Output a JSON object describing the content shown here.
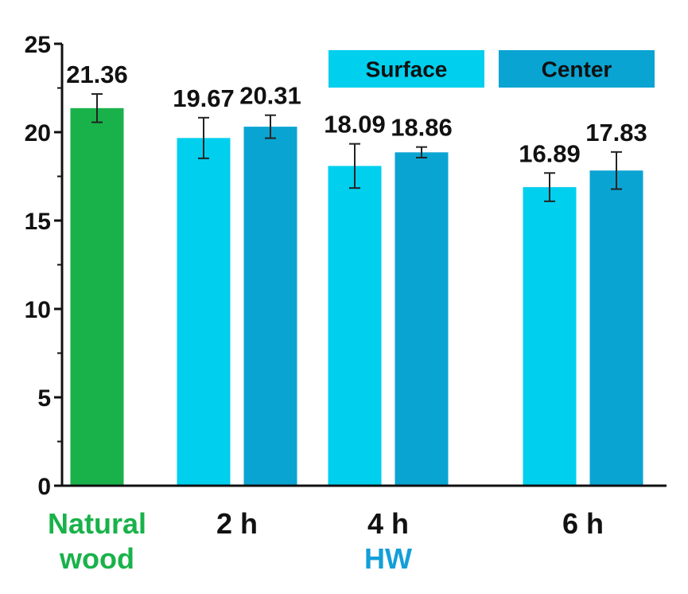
{
  "chart_data": {
    "type": "bar",
    "title": "",
    "xlabel": "",
    "ylabel": "",
    "ylim": [
      0,
      25
    ],
    "yticks": [
      0,
      5,
      10,
      15,
      20,
      25
    ],
    "grid": false,
    "legend_position": "top-right",
    "groups": [
      {
        "label": "Natural",
        "label2": "wood",
        "label_color": "#19b24a",
        "bars": [
          {
            "series": "Natural wood",
            "value": 21.36,
            "value_label": "21.36",
            "err": 0.8,
            "color": "#19b24a"
          }
        ]
      },
      {
        "label": "2 h",
        "bars": [
          {
            "series": "Surface",
            "value": 19.67,
            "value_label": "19.67",
            "err": 1.15,
            "color": "#00cfee"
          },
          {
            "series": "Center",
            "value": 20.31,
            "value_label": "20.31",
            "err": 0.65,
            "color": "#0aa4d2"
          }
        ]
      },
      {
        "label": "4 h",
        "bars": [
          {
            "series": "Surface",
            "value": 18.09,
            "value_label": "18.09",
            "err": 1.25,
            "color": "#00cfee"
          },
          {
            "series": "Center",
            "value": 18.86,
            "value_label": "18.86",
            "err": 0.3,
            "color": "#0aa4d2"
          }
        ]
      },
      {
        "label": "6 h",
        "bars": [
          {
            "series": "Surface",
            "value": 16.89,
            "value_label": "16.89",
            "err": 0.8,
            "color": "#00cfee"
          },
          {
            "series": "Center",
            "value": 17.83,
            "value_label": "17.83",
            "err": 1.05,
            "color": "#0aa4d2"
          }
        ]
      }
    ],
    "group_caption": {
      "text": "HW",
      "color": "#139fd8"
    },
    "legend": [
      {
        "label": "Surface",
        "color": "#00cfee"
      },
      {
        "label": "Center",
        "color": "#0aa4d2"
      }
    ]
  }
}
